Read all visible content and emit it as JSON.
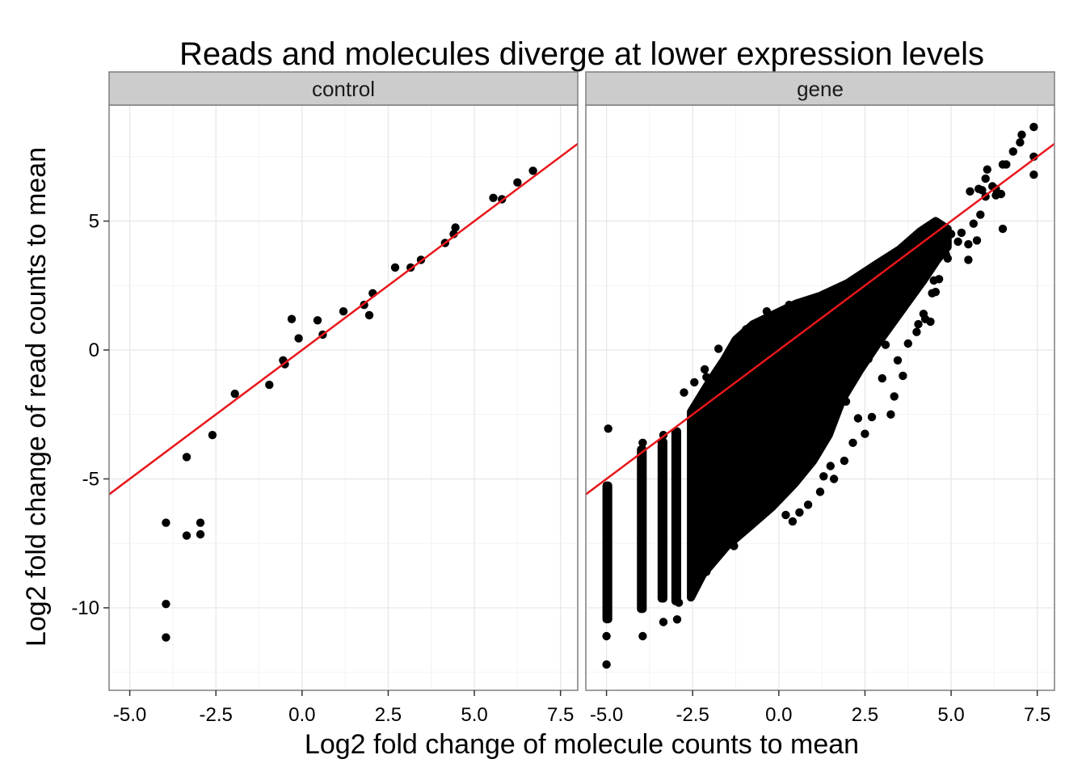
{
  "chart_data": {
    "type": "scatter",
    "title": "Reads and molecules diverge at lower expression levels",
    "xlabel": "Log2 fold change of molecule counts to mean",
    "ylabel": "Log2 fold change of read counts to mean",
    "xlim": [
      -5.6,
      8.0
    ],
    "ylim": [
      -13.2,
      9.5
    ],
    "x_ticks": [
      -5.0,
      -2.5,
      0.0,
      2.5,
      5.0,
      7.5
    ],
    "x_tick_labels": [
      "-5.0",
      "-2.5",
      "0.0",
      "2.5",
      "5.0",
      "7.5"
    ],
    "y_ticks": [
      -10,
      -5,
      0,
      5
    ],
    "y_tick_labels": [
      "-10",
      "-5",
      "0",
      "5"
    ],
    "grid": true,
    "fit_line": {
      "color": "#e8161b",
      "slope": 1.0,
      "intercept": 0.0
    },
    "point_color": "#000000",
    "panels": [
      {
        "name": "control",
        "points": [
          [
            -3.95,
            -6.7
          ],
          [
            -3.95,
            -9.85
          ],
          [
            -3.95,
            -11.15
          ],
          [
            -3.35,
            -7.2
          ],
          [
            -3.35,
            -4.15
          ],
          [
            -2.95,
            -6.7
          ],
          [
            -2.95,
            -7.15
          ],
          [
            -2.6,
            -3.3
          ],
          [
            -1.95,
            -1.7
          ],
          [
            -0.95,
            -1.35
          ],
          [
            -0.55,
            -0.4
          ],
          [
            -0.5,
            -0.55
          ],
          [
            -0.3,
            1.2
          ],
          [
            -0.1,
            0.45
          ],
          [
            0.45,
            1.15
          ],
          [
            0.6,
            0.6
          ],
          [
            1.2,
            1.5
          ],
          [
            1.8,
            1.75
          ],
          [
            1.95,
            1.35
          ],
          [
            2.05,
            2.2
          ],
          [
            2.7,
            3.2
          ],
          [
            3.15,
            3.2
          ],
          [
            3.45,
            3.5
          ],
          [
            4.15,
            4.15
          ],
          [
            4.4,
            4.5
          ],
          [
            4.45,
            4.75
          ],
          [
            5.55,
            5.9
          ],
          [
            5.8,
            5.85
          ],
          [
            6.25,
            6.5
          ],
          [
            6.7,
            6.95
          ]
        ]
      },
      {
        "name": "gene",
        "points": [
          [
            -5.0,
            -12.2
          ],
          [
            -5.0,
            -11.1
          ],
          [
            -4.95,
            -3.05
          ],
          [
            -3.95,
            -11.1
          ],
          [
            -3.95,
            -3.6
          ],
          [
            -3.35,
            -10.55
          ],
          [
            -3.35,
            -3.3
          ],
          [
            -2.95,
            -10.45
          ],
          [
            -2.75,
            -1.65
          ],
          [
            -2.45,
            -1.25
          ],
          [
            -2.15,
            -0.75
          ],
          [
            -2.1,
            -1.05
          ],
          [
            -1.75,
            0.05
          ],
          [
            -1.45,
            -0.2
          ],
          [
            -1.3,
            0.15
          ],
          [
            -1.2,
            -0.45
          ],
          [
            -0.95,
            0.8
          ],
          [
            -0.35,
            1.5
          ],
          [
            0.3,
            1.75
          ],
          [
            0.2,
            -6.4
          ],
          [
            0.4,
            -6.65
          ],
          [
            0.6,
            -6.3
          ],
          [
            0.85,
            -6.0
          ],
          [
            1.2,
            -5.5
          ],
          [
            1.6,
            -5.0
          ],
          [
            1.3,
            -4.9
          ],
          [
            1.5,
            -4.5
          ],
          [
            1.9,
            -4.3
          ],
          [
            2.15,
            -3.6
          ],
          [
            2.7,
            -2.6
          ],
          [
            2.5,
            -3.25
          ],
          [
            3.25,
            -2.5
          ],
          [
            3.35,
            -1.8
          ],
          [
            3.0,
            -1.1
          ],
          [
            3.6,
            -1.0
          ],
          [
            3.45,
            -0.4
          ],
          [
            3.75,
            0.25
          ],
          [
            4.0,
            0.7
          ],
          [
            4.05,
            1.0
          ],
          [
            4.2,
            1.4
          ],
          [
            4.4,
            1.1
          ],
          [
            4.25,
            1.2
          ],
          [
            4.65,
            2.75
          ],
          [
            4.5,
            2.7
          ],
          [
            4.85,
            3.7
          ],
          [
            4.9,
            3.55
          ],
          [
            4.55,
            2.25
          ],
          [
            5.0,
            4.5
          ],
          [
            5.2,
            4.2
          ],
          [
            5.3,
            4.55
          ],
          [
            5.5,
            4.1
          ],
          [
            5.55,
            6.15
          ],
          [
            5.8,
            6.25
          ],
          [
            5.85,
            5.25
          ],
          [
            6.0,
            6.65
          ],
          [
            6.05,
            7.0
          ],
          [
            6.2,
            6.35
          ],
          [
            6.3,
            6.25
          ],
          [
            6.45,
            6.05
          ],
          [
            6.5,
            7.2
          ],
          [
            6.6,
            7.2
          ],
          [
            6.8,
            7.7
          ],
          [
            7.0,
            8.05
          ],
          [
            7.05,
            8.35
          ],
          [
            7.4,
            8.65
          ],
          [
            7.4,
            7.5
          ],
          [
            7.4,
            6.8
          ],
          [
            6.5,
            4.7
          ],
          [
            5.75,
            4.25
          ],
          [
            5.5,
            3.5
          ],
          [
            4.3,
            3.0
          ],
          [
            3.75,
            3.2
          ],
          [
            3.95,
            2.25
          ],
          [
            4.1,
            2.55
          ],
          [
            3.1,
            0.2
          ],
          [
            4.45,
            2.2
          ],
          [
            5.65,
            4.9
          ],
          [
            6.0,
            5.95
          ],
          [
            6.3,
            6.0
          ],
          [
            5.9,
            6.2
          ],
          [
            1.95,
            -2.0
          ],
          [
            1.0,
            -2.8
          ],
          [
            2.3,
            -2.65
          ],
          [
            0.65,
            -4.1
          ],
          [
            0.15,
            -5.0
          ],
          [
            -0.4,
            -5.4
          ],
          [
            -0.8,
            -5.9
          ],
          [
            -1.25,
            -5.8
          ],
          [
            -0.05,
            -3.0
          ],
          [
            2.6,
            -0.35
          ],
          [
            3.2,
            1.55
          ],
          [
            2.0,
            1.0
          ],
          [
            0.95,
            -0.85
          ],
          [
            -0.1,
            -1.5
          ],
          [
            -1.6,
            -3.0
          ],
          [
            -2.3,
            -4.5
          ],
          [
            -1.9,
            -6.0
          ],
          [
            -1.3,
            -7.6
          ],
          [
            -2.1,
            -8.6
          ],
          [
            -2.9,
            -9.8
          ]
        ],
        "dense_bands": [
          {
            "x_min": -5.0,
            "x_max": -4.95,
            "y_min": -10.6,
            "y_max": -5.1
          },
          {
            "x_min": -4.0,
            "x_max": -3.95,
            "y_min": -10.2,
            "y_max": -3.7
          },
          {
            "x_min": -3.4,
            "x_max": -3.35,
            "y_min": -9.8,
            "y_max": -3.4
          },
          {
            "x_min": -3.0,
            "x_max": -2.95,
            "y_min": -9.9,
            "y_max": -3.0
          }
        ],
        "dense_region": [
          [
            -2.55,
            -2.4
          ],
          [
            -2.0,
            -1.2
          ],
          [
            -1.6,
            -0.4
          ],
          [
            -1.25,
            0.4
          ],
          [
            -0.75,
            1.0
          ],
          [
            -0.2,
            1.35
          ],
          [
            0.5,
            1.8
          ],
          [
            1.2,
            2.1
          ],
          [
            2.0,
            2.6
          ],
          [
            2.8,
            3.3
          ],
          [
            3.5,
            3.9
          ],
          [
            4.1,
            4.6
          ],
          [
            4.55,
            5.0
          ],
          [
            4.9,
            4.7
          ],
          [
            4.9,
            4.0
          ],
          [
            4.6,
            3.5
          ],
          [
            4.2,
            2.7
          ],
          [
            3.6,
            1.6
          ],
          [
            2.9,
            0.3
          ],
          [
            2.35,
            -0.8
          ],
          [
            1.85,
            -1.9
          ],
          [
            1.45,
            -3.3
          ],
          [
            1.0,
            -4.3
          ],
          [
            0.45,
            -5.2
          ],
          [
            -0.2,
            -6.1
          ],
          [
            -0.8,
            -6.8
          ],
          [
            -1.5,
            -7.6
          ],
          [
            -2.2,
            -8.7
          ],
          [
            -2.55,
            -9.6
          ]
        ]
      }
    ]
  }
}
